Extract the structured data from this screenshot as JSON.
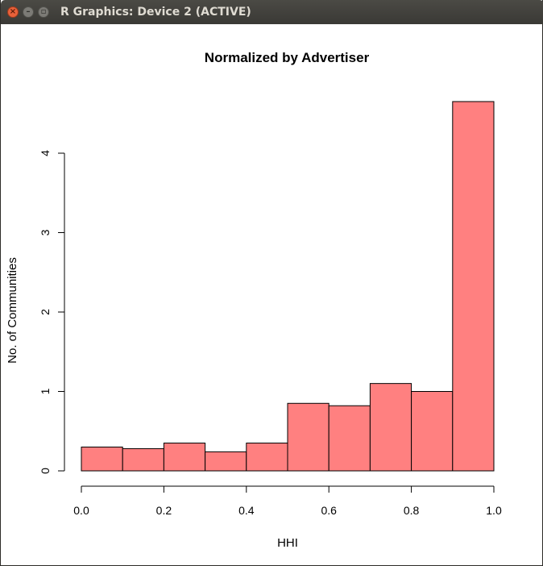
{
  "window": {
    "title": "R Graphics: Device 2 (ACTIVE)",
    "close_glyph": "×",
    "min_glyph": "–",
    "max_glyph": "▫"
  },
  "chart_data": {
    "type": "bar",
    "title": "Normalized by Advertiser",
    "xlabel": "HHI",
    "ylabel": "No. of Communities",
    "bins": [
      [
        0.0,
        0.1
      ],
      [
        0.1,
        0.2
      ],
      [
        0.2,
        0.3
      ],
      [
        0.3,
        0.4
      ],
      [
        0.4,
        0.5
      ],
      [
        0.5,
        0.6
      ],
      [
        0.6,
        0.7
      ],
      [
        0.7,
        0.8
      ],
      [
        0.8,
        0.9
      ],
      [
        0.9,
        1.0
      ]
    ],
    "values": [
      0.3,
      0.28,
      0.35,
      0.24,
      0.35,
      0.85,
      0.82,
      1.1,
      1.0,
      4.65
    ],
    "xlim": [
      0,
      1
    ],
    "ylim": [
      0,
      4
    ],
    "xticks": [
      "0.0",
      "0.2",
      "0.4",
      "0.6",
      "0.8",
      "1.0"
    ],
    "yticks": [
      "0",
      "1",
      "2",
      "3",
      "4"
    ],
    "bar_color": "#ff8080",
    "bar_border": "#000000",
    "grid": false
  }
}
